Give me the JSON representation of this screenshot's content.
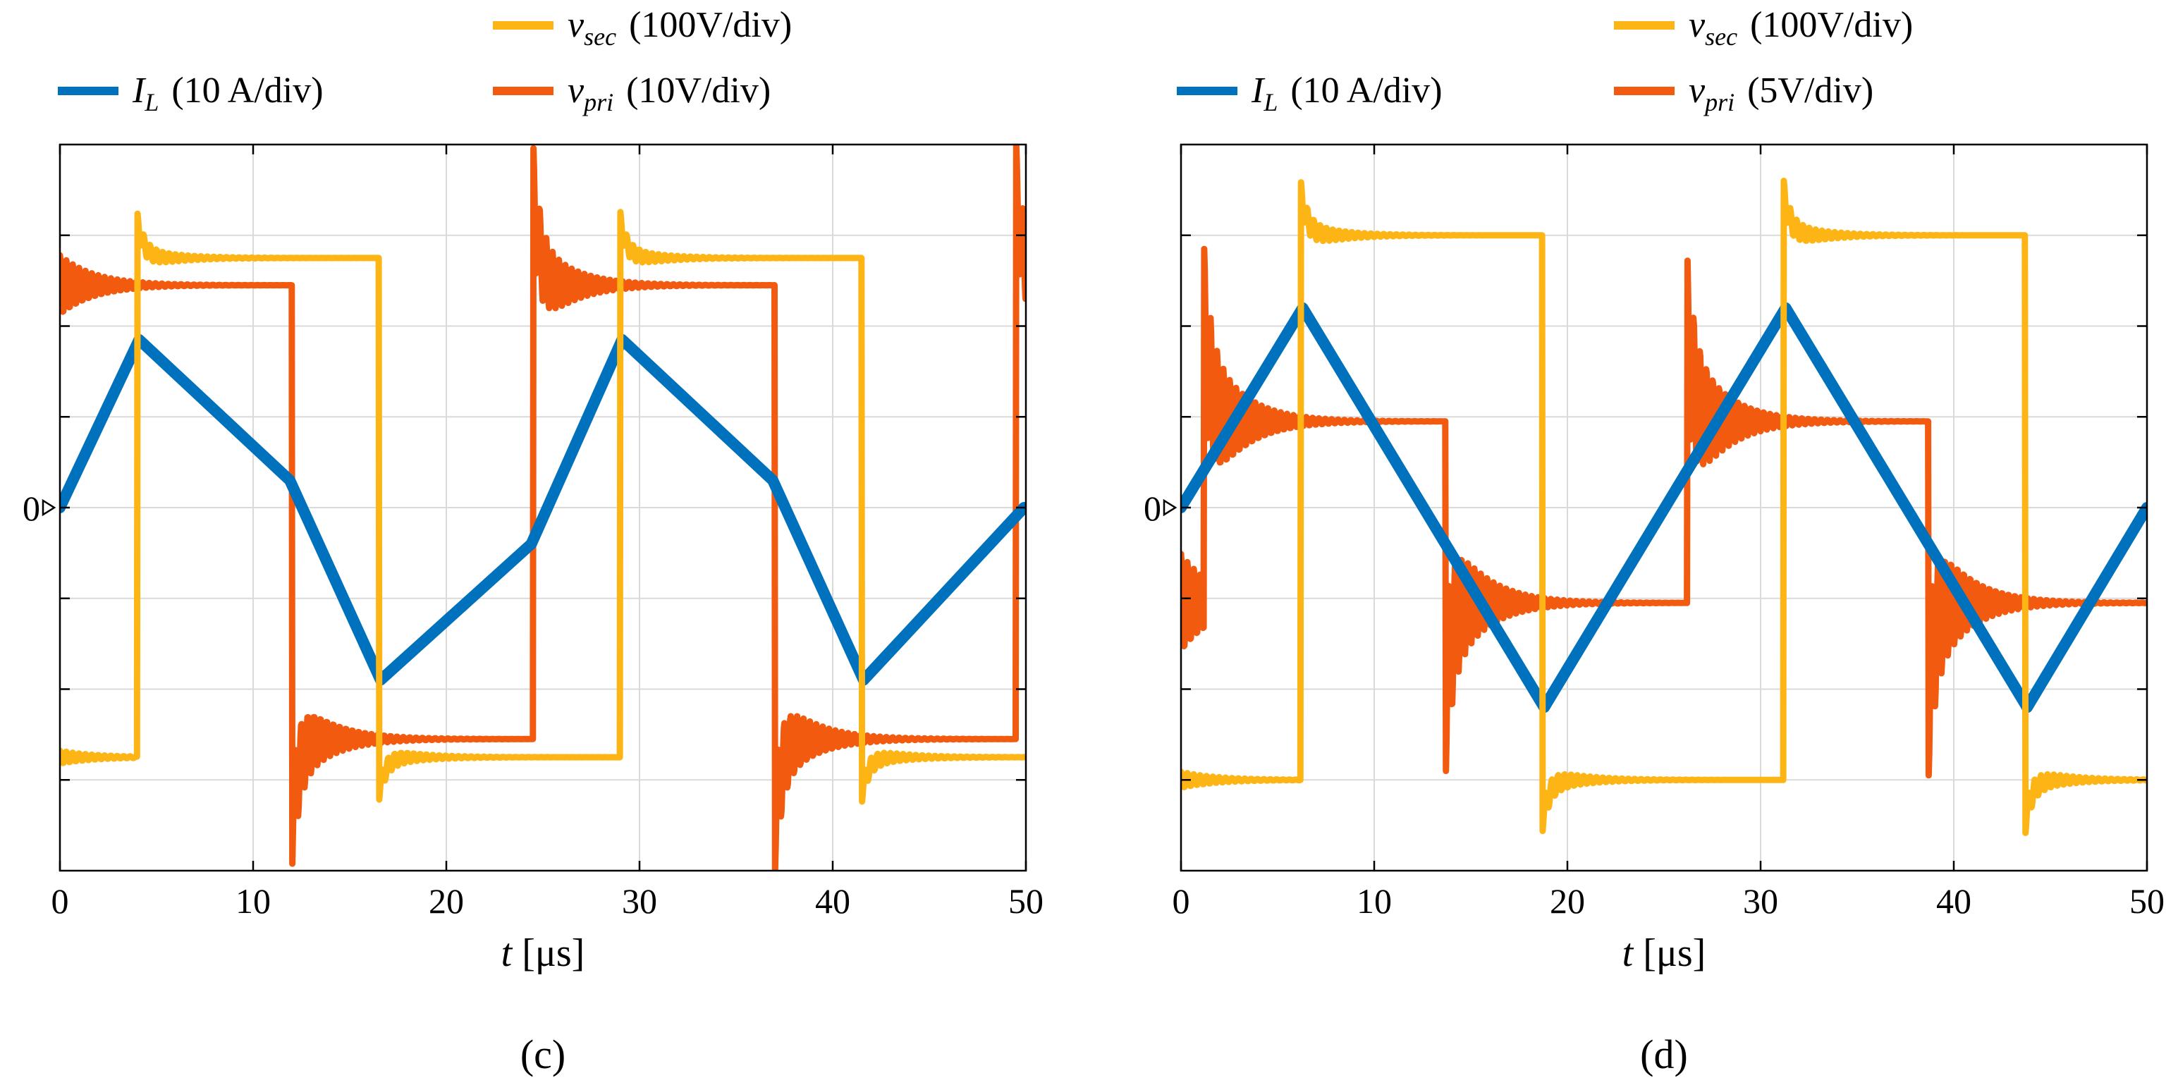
{
  "colors": {
    "IL": "#0072BD",
    "vsec": "#FDB515",
    "vpri": "#F25A10",
    "grid": "#dadada"
  },
  "chart_data": [
    {
      "type": "line",
      "panel_label": "(c)",
      "xlabel": {
        "var": "t",
        "unit": "[μs]"
      },
      "xlim": [
        0,
        50
      ],
      "ylim": [
        -4,
        4
      ],
      "xticks": [
        0,
        10,
        20,
        30,
        40,
        50
      ],
      "xtick_labels": [
        "0",
        "10",
        "20",
        "30",
        "40",
        "50"
      ],
      "yticks": [
        -3,
        -2,
        -1,
        0,
        1,
        2,
        3
      ],
      "zero_label": "0",
      "grid": true,
      "legend": [
        {
          "key": "IL",
          "main": "I",
          "sub": "L",
          "scale": "(10 A/div)"
        },
        {
          "key": "vsec",
          "main": "v",
          "sub": "sec",
          "scale": "(100V/div)"
        },
        {
          "key": "vpri",
          "main": "v",
          "sub": "pri",
          "scale": "(10V/div)"
        }
      ],
      "series": [
        {
          "name": "I_L",
          "key": "IL",
          "x": [
            0,
            4.1,
            11.9,
            16.6,
            24.4,
            29.1,
            36.9,
            41.6,
            49.9
          ],
          "y": [
            0,
            1.85,
            0.3,
            -1.9,
            -0.4,
            1.85,
            0.3,
            -1.9,
            0
          ]
        },
        {
          "name": "v_sec",
          "key": "vsec",
          "x": [
            0,
            4.0,
            16.5,
            29.0,
            41.5,
            50
          ],
          "y": [
            -2.75,
            2.75,
            -2.75,
            2.75,
            -2.75,
            -2.75
          ],
          "overshoot": 0.4,
          "ring": 0.12
        },
        {
          "name": "v_pri",
          "key": "vpri",
          "x": [
            0,
            12.0,
            24.5,
            37.0,
            49.5,
            50
          ],
          "y": [
            2.45,
            -2.55,
            2.45,
            -2.55,
            2.45,
            2.45
          ],
          "overshoot": 1.0,
          "ring": 0.55
        }
      ]
    },
    {
      "type": "line",
      "panel_label": "(d)",
      "xlabel": {
        "var": "t",
        "unit": "[μs]"
      },
      "xlim": [
        0,
        50
      ],
      "ylim": [
        -4,
        4
      ],
      "xticks": [
        0,
        10,
        20,
        30,
        40,
        50
      ],
      "xtick_labels": [
        "0",
        "10",
        "20",
        "30",
        "40",
        "50"
      ],
      "yticks": [
        -3,
        -2,
        -1,
        0,
        1,
        2,
        3
      ],
      "zero_label": "0",
      "grid": true,
      "legend": [
        {
          "key": "IL",
          "main": "I",
          "sub": "L",
          "scale": "(10 A/div)"
        },
        {
          "key": "vsec",
          "main": "v",
          "sub": "sec",
          "scale": "(100V/div)"
        },
        {
          "key": "vpri",
          "main": "v",
          "sub": "pri",
          "scale": "(5V/div)"
        }
      ],
      "series": [
        {
          "name": "I_L",
          "key": "IL",
          "x": [
            0,
            6.3,
            18.8,
            31.3,
            43.8,
            50
          ],
          "y": [
            0,
            2.2,
            -2.2,
            2.2,
            -2.2,
            0
          ]
        },
        {
          "name": "v_sec",
          "key": "vsec",
          "x": [
            0,
            6.2,
            18.7,
            31.2,
            43.7,
            50
          ],
          "y": [
            -3.0,
            3.0,
            -3.0,
            3.0,
            -3.0,
            -3.0
          ],
          "overshoot": 0.45,
          "ring": 0.15
        },
        {
          "name": "v_pri",
          "key": "vpri",
          "x": [
            0,
            1.2,
            13.7,
            26.2,
            38.7,
            50
          ],
          "y": [
            -1.05,
            0.95,
            -1.05,
            0.95,
            -1.05,
            -1.05
          ],
          "overshoot": 1.0,
          "ring": 0.9
        }
      ]
    }
  ]
}
